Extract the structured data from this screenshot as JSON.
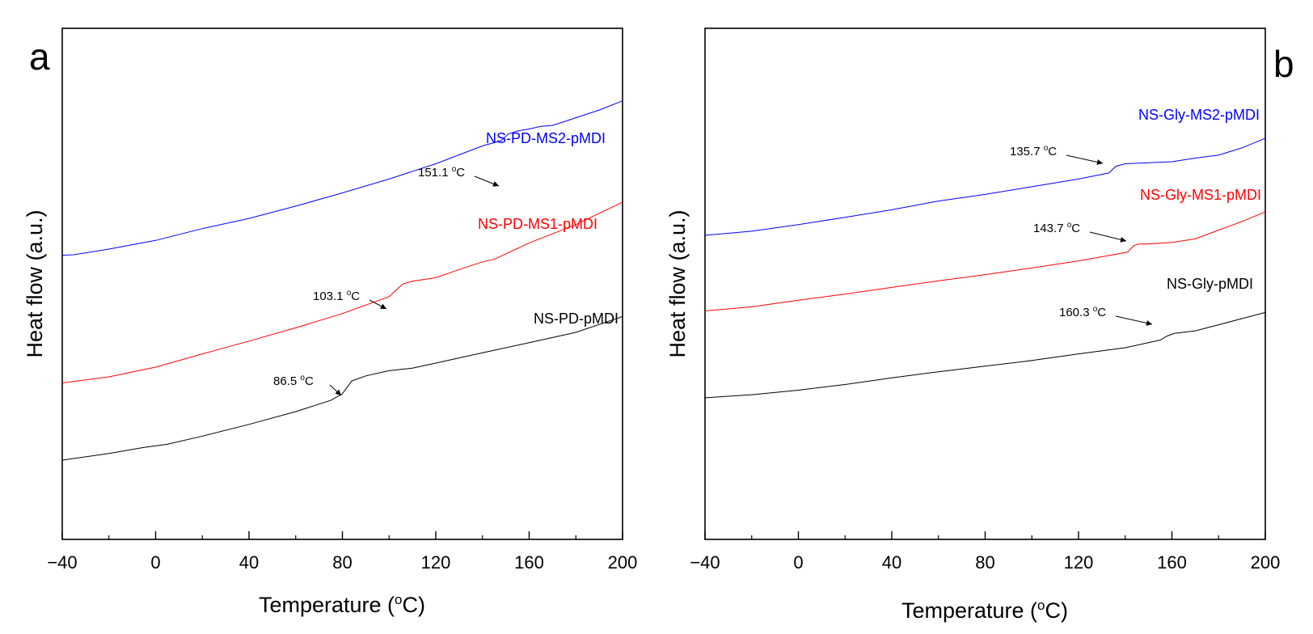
{
  "chart_data": [
    {
      "type": "line",
      "panel_label": "a",
      "xlabel": "Temperature (°C)",
      "xlabel_parts": [
        "Temperature (",
        "o",
        "C)"
      ],
      "ylabel": "Heat flow (a.u.)",
      "xlim": [
        -40,
        200
      ],
      "xticks": [
        -40,
        0,
        40,
        80,
        120,
        160,
        200
      ],
      "xtick_labels": [
        "−40",
        "0",
        "40",
        "80",
        "120",
        "160",
        "200"
      ],
      "yticks": "none",
      "grid": false,
      "series": [
        {
          "name": "NS-PD-MS2-pMDI",
          "color": "#0000ff",
          "x": [
            -40,
            -35,
            -20,
            0,
            20,
            40,
            60,
            80,
            100,
            120,
            140,
            148,
            151,
            155,
            160,
            165,
            170,
            180,
            190,
            200
          ],
          "y": [
            0.556,
            0.557,
            0.568,
            0.585,
            0.608,
            0.628,
            0.652,
            0.678,
            0.705,
            0.735,
            0.77,
            0.78,
            0.793,
            0.799,
            0.803,
            0.808,
            0.81,
            0.825,
            0.84,
            0.858
          ]
        },
        {
          "name": "NS-PD-MS1-pMDI",
          "color": "#ff0000",
          "x": [
            -40,
            -20,
            0,
            20,
            40,
            60,
            80,
            100,
            103,
            106,
            110,
            120,
            130,
            140,
            145,
            160,
            180,
            200
          ],
          "y": [
            0.306,
            0.318,
            0.337,
            0.363,
            0.388,
            0.414,
            0.442,
            0.475,
            0.488,
            0.5,
            0.505,
            0.512,
            0.528,
            0.543,
            0.548,
            0.58,
            0.616,
            0.66
          ]
        },
        {
          "name": "NS-PD-pMDI",
          "color": "#000000",
          "x": [
            -40,
            -20,
            -5,
            5,
            20,
            40,
            60,
            75,
            80,
            84,
            90,
            100,
            110,
            120,
            140,
            160,
            180,
            200
          ],
          "y": [
            0.155,
            0.168,
            0.18,
            0.186,
            0.202,
            0.225,
            0.25,
            0.272,
            0.285,
            0.31,
            0.32,
            0.33,
            0.335,
            0.345,
            0.365,
            0.385,
            0.405,
            0.436
          ]
        }
      ],
      "annotations": [
        {
          "text": "151.1 °C",
          "value": "151.1",
          "x": 151.1,
          "series": "NS-PD-MS2-pMDI"
        },
        {
          "text": "103.1 °C",
          "value": "103.1",
          "x": 103.1,
          "series": "NS-PD-MS1-pMDI"
        },
        {
          "text": "86.5 °C",
          "value": "86.5",
          "x": 86.5,
          "series": "NS-PD-pMDI"
        }
      ]
    },
    {
      "type": "line",
      "panel_label": "b",
      "xlabel": "Temperature (°C)",
      "xlabel_parts": [
        "Temperature (",
        "o",
        "C)"
      ],
      "ylabel": "Heat flow (a.u.)",
      "xlim": [
        -40,
        200
      ],
      "xticks": [
        -40,
        0,
        40,
        80,
        120,
        160,
        200
      ],
      "xtick_labels": [
        "−40",
        "0",
        "40",
        "80",
        "120",
        "160",
        "200"
      ],
      "yticks": "none",
      "grid": false,
      "series": [
        {
          "name": "NS-Gly-MS2-pMDI",
          "color": "#0000ff",
          "x": [
            -40,
            -20,
            0,
            20,
            40,
            60,
            80,
            100,
            120,
            133,
            136,
            140,
            150,
            160,
            170,
            180,
            190,
            200
          ],
          "y": [
            0.595,
            0.603,
            0.616,
            0.63,
            0.645,
            0.662,
            0.675,
            0.69,
            0.705,
            0.717,
            0.73,
            0.735,
            0.737,
            0.739,
            0.746,
            0.752,
            0.766,
            0.785
          ]
        },
        {
          "name": "NS-Gly-MS1-pMDI",
          "color": "#ff0000",
          "x": [
            -40,
            -20,
            0,
            20,
            40,
            60,
            80,
            100,
            120,
            130,
            141,
            143.7,
            146,
            150,
            160,
            170,
            180,
            190,
            200
          ],
          "y": [
            0.447,
            0.455,
            0.468,
            0.48,
            0.493,
            0.506,
            0.518,
            0.531,
            0.545,
            0.553,
            0.562,
            0.575,
            0.578,
            0.578,
            0.581,
            0.588,
            0.605,
            0.622,
            0.641
          ]
        },
        {
          "name": "NS-Gly-pMDI",
          "color": "#000000",
          "x": [
            -40,
            -20,
            0,
            20,
            40,
            60,
            80,
            100,
            120,
            140,
            155,
            158,
            161,
            170,
            180,
            190,
            200
          ],
          "y": [
            0.277,
            0.283,
            0.292,
            0.303,
            0.316,
            0.328,
            0.339,
            0.35,
            0.363,
            0.375,
            0.39,
            0.398,
            0.403,
            0.408,
            0.42,
            0.432,
            0.444
          ]
        }
      ],
      "annotations": [
        {
          "text": "135.7 °C",
          "value": "135.7",
          "x": 135.7,
          "series": "NS-Gly-MS2-pMDI"
        },
        {
          "text": "143.7 °C",
          "value": "143.7",
          "x": 143.7,
          "series": "NS-Gly-MS1-pMDI"
        },
        {
          "text": "160.3 °C",
          "value": "160.3",
          "x": 160.3,
          "series": "NS-Gly-pMDI"
        }
      ]
    }
  ]
}
